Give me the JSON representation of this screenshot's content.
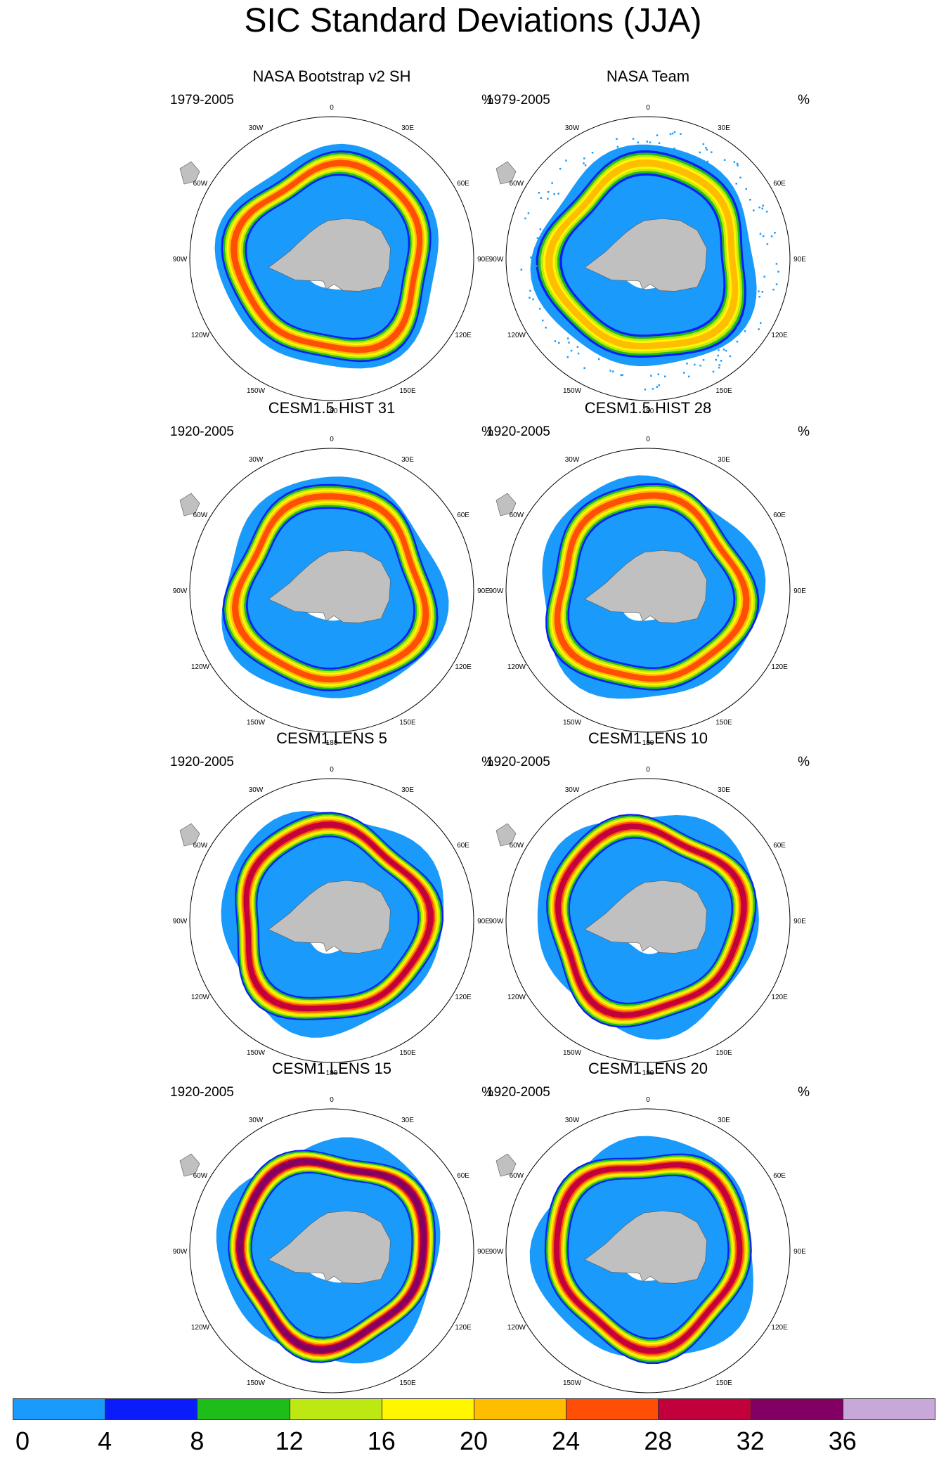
{
  "title": "SIC Standard Deviations (JJA)",
  "unit": "%",
  "colors": {
    "land": "#c0c0c0",
    "frame": "#000000",
    "levels": [
      "#1a9bfc",
      "#0a1cfa",
      "#1fbd1a",
      "#bde812",
      "#fff600",
      "#ffbd00",
      "#ff4e05",
      "#c2003b",
      "#820064",
      "#c8a8d8"
    ]
  },
  "colorbar": {
    "labels": [
      "0",
      "4",
      "8",
      "12",
      "16",
      "20",
      "24",
      "28",
      "32",
      "36"
    ]
  },
  "longitude_labels": [
    "0",
    "30E",
    "60E",
    "90E",
    "120E",
    "150E",
    "180",
    "150W",
    "120W",
    "90W",
    "60W",
    "30W"
  ],
  "panels": [
    {
      "title": "NASA Bootstrap v2 SH",
      "period": "1979-2005",
      "unit": "%",
      "speckled": false,
      "peak": 6
    },
    {
      "title": "NASA Team",
      "period": "1979-2005",
      "unit": "%",
      "speckled": true,
      "peak": 5
    },
    {
      "title": "CESM1.5 HIST 31",
      "period": "1920-2005",
      "unit": "%",
      "speckled": false,
      "peak": 6
    },
    {
      "title": "CESM1.5 HIST 28",
      "period": "1920-2005",
      "unit": "%",
      "speckled": false,
      "peak": 6
    },
    {
      "title": "CESM1 LENS 5",
      "period": "1920-2005",
      "unit": "%",
      "speckled": false,
      "peak": 7
    },
    {
      "title": "CESM1 LENS 10",
      "period": "1920-2005",
      "unit": "%",
      "speckled": false,
      "peak": 7
    },
    {
      "title": "CESM1 LENS 15",
      "period": "1920-2005",
      "unit": "%",
      "speckled": false,
      "peak": 8
    },
    {
      "title": "CESM1 LENS 20",
      "period": "1920-2005",
      "unit": "%",
      "speckled": false,
      "peak": 7
    }
  ]
}
